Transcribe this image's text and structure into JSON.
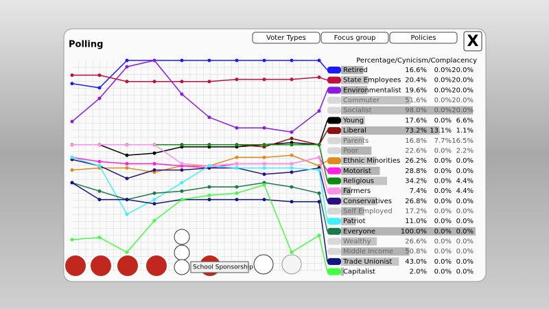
{
  "title": "Polling",
  "tabs": [
    "Voter Types",
    "Focus group",
    "Policies"
  ],
  "close": "X",
  "table_header": "Percentage/Cynicism/Complacency",
  "tooltip": "School Sponsorship",
  "rows": [
    {
      "name": "Retired",
      "color": "#1a1aff",
      "values": [
        16.6,
        0,
        20
      ],
      "value_labels": [
        "16.6%",
        "0.0%",
        "20.0%"
      ],
      "history": [
        89,
        87,
        100,
        100,
        100,
        100,
        100,
        100,
        100,
        100
      ]
    },
    {
      "name": "State Employees",
      "color": "#c0103a",
      "values": [
        20.4,
        0,
        20
      ],
      "value_labels": [
        "20.4%",
        "0.0%",
        "20.0%"
      ],
      "history": [
        93,
        93,
        90,
        90,
        90,
        90,
        91,
        91,
        91,
        92
      ]
    },
    {
      "name": "Environmentalist",
      "color": "#8a1be0",
      "values": [
        19.6,
        0,
        20
      ],
      "value_labels": [
        "19.6%",
        "0.0%",
        "20.0%"
      ],
      "history": [
        71,
        82,
        97,
        100,
        84,
        73,
        68,
        68,
        66,
        76
      ]
    },
    {
      "name": "Commuter",
      "color": "#d8d8d8",
      "values": [
        51.6,
        0,
        20
      ],
      "value_labels": [
        "51.6%",
        "0.0%",
        "20.0%"
      ]
    },
    {
      "name": "Socialist",
      "color": "#d8d8d8",
      "values": [
        98.0,
        0,
        20
      ],
      "value_labels": [
        "98.0%",
        "0.0%",
        "20.0%"
      ]
    },
    {
      "name": "Young",
      "color": "#000000",
      "values": [
        17.6,
        0,
        6.6
      ],
      "value_labels": [
        "17.6%",
        "0.0%",
        "6.6%"
      ],
      "history": [
        60,
        60,
        55,
        56,
        59,
        59,
        59,
        60,
        61,
        60
      ]
    },
    {
      "name": "Liberal",
      "color": "#8b1010",
      "values": [
        73.2,
        13.1,
        1.1
      ],
      "value_labels": [
        "73.2%",
        "13.1%",
        "1.1%"
      ],
      "history": [
        60,
        60,
        60,
        60,
        60,
        60,
        60,
        59,
        63,
        60
      ]
    },
    {
      "name": "Parents",
      "color": "#d8d8d8",
      "values": [
        16.8,
        7.7,
        16.5
      ],
      "value_labels": [
        "16.8%",
        "7.7%",
        "16.5%"
      ]
    },
    {
      "name": "Poor",
      "color": "#d8d8d8",
      "values": [
        22.6,
        0,
        2.2
      ],
      "value_labels": [
        "22.6%",
        "0.0%",
        "2.2%"
      ]
    },
    {
      "name": "Ethnic Minorities",
      "color": "#e08a1a",
      "values": [
        26.2,
        0,
        0
      ],
      "value_labels": [
        "26.2%",
        "0.0%",
        "0.0%"
      ],
      "history": [
        48,
        49,
        49,
        47,
        50,
        50,
        54,
        54,
        55,
        50
      ]
    },
    {
      "name": "Motorist",
      "color": "#ff20e0",
      "values": [
        28.8,
        0,
        0
      ],
      "value_labels": [
        "28.8%",
        "0.0%",
        "0.0%"
      ],
      "history": [
        54,
        52,
        51,
        51,
        50,
        49,
        51,
        51,
        51,
        54
      ]
    },
    {
      "name": "Religious",
      "color": "#108a10",
      "values": [
        34.2,
        0,
        4.4
      ],
      "value_labels": [
        "34.2%",
        "0.0%",
        "4.4%"
      ],
      "history": [
        60,
        60,
        60,
        60,
        60,
        60,
        60,
        60,
        60,
        60
      ]
    },
    {
      "name": "Farmers",
      "color": "#ff90e8",
      "values": [
        7.4,
        0,
        4.4
      ],
      "value_labels": [
        "7.4%",
        "0.0%",
        "4.4%"
      ],
      "history": [
        60,
        60,
        60,
        60,
        51,
        50,
        51,
        51,
        51,
        54
      ]
    },
    {
      "name": "Conservatives",
      "color": "#2a1080",
      "values": [
        26.8,
        0,
        0
      ],
      "value_labels": [
        "26.8%",
        "0.0%",
        "0.0%"
      ],
      "history": [
        53,
        50,
        44,
        48,
        48,
        49,
        49,
        46,
        47,
        49
      ]
    },
    {
      "name": "Self Employed",
      "color": "#d8d8d8",
      "values": [
        17.2,
        0,
        0
      ],
      "value_labels": [
        "17.2%",
        "0.0%",
        "0.0%"
      ]
    },
    {
      "name": "Patriot",
      "color": "#40f0ff",
      "values": [
        11.0,
        0,
        0
      ],
      "value_labels": [
        "11.0%",
        "0.0%",
        "0.0%"
      ],
      "history": [
        54,
        50,
        27,
        34,
        42,
        50,
        49,
        49,
        49,
        48
      ]
    },
    {
      "name": "Everyone",
      "color": "#1a7a4a",
      "values": [
        100.0,
        0,
        0
      ],
      "value_labels": [
        "100.0%",
        "0.0%",
        "0.0%"
      ],
      "history": [
        42,
        38,
        34,
        37,
        38,
        40,
        40,
        42,
        40,
        37
      ]
    },
    {
      "name": "Wealthy",
      "color": "#d8d8d8",
      "values": [
        26.6,
        0,
        0
      ],
      "value_labels": [
        "26.6%",
        "0.0%",
        "0.0%"
      ]
    },
    {
      "name": "Middle Income",
      "color": "#d8d8d8",
      "values": [
        50.8,
        0,
        0
      ],
      "value_labels": [
        "50.8%",
        "0.0%",
        "0.0%"
      ]
    },
    {
      "name": "Trade Unionist",
      "color": "#101880",
      "values": [
        43.0,
        0,
        0
      ],
      "value_labels": [
        "43.0%",
        "0.0%",
        "0.0%"
      ],
      "history": [
        42,
        34,
        34,
        32,
        34,
        34,
        34,
        34,
        33,
        33
      ]
    },
    {
      "name": "Capitalist",
      "color": "#40ff40",
      "values": [
        2.0,
        0,
        0
      ],
      "value_labels": [
        "2.0%",
        "0.0%",
        "0.0%"
      ],
      "history": [
        15,
        16,
        9,
        24,
        34,
        36,
        37,
        41,
        9,
        17
      ]
    }
  ]
}
